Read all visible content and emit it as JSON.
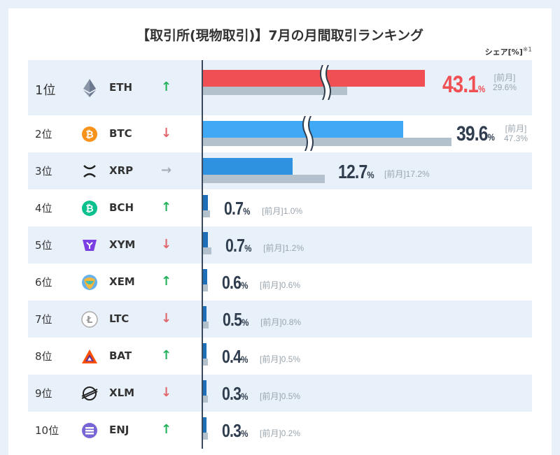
{
  "title": "【取引所(現物取引)】7月の月間取引ランキング",
  "share_unit": "シェア[%]",
  "share_note_mark": "※1",
  "prev_label": "[前月]",
  "colors": {
    "top_bar": "#f04f54",
    "second_bar": "#3fa9f5",
    "other_bar": "#2f92e0",
    "small_bar": "#1f6fb8",
    "prev_bar": "#b3c1cc",
    "up": "#22b15a",
    "down": "#e0666b",
    "flat": "#a5adb4",
    "top_value": "#f04f54"
  },
  "rows": [
    {
      "rank": "1位",
      "symbol": "ETH",
      "icon": "eth-icon",
      "trend": "up",
      "trend_glyph": "↑",
      "value": "43.1",
      "prev": "29.6"
    },
    {
      "rank": "2位",
      "symbol": "BTC",
      "icon": "btc-icon",
      "trend": "down",
      "trend_glyph": "↓",
      "value": "39.6",
      "prev": "47.3"
    },
    {
      "rank": "3位",
      "symbol": "XRP",
      "icon": "xrp-icon",
      "trend": "flat",
      "trend_glyph": "→",
      "value": "12.7",
      "prev": "17.2"
    },
    {
      "rank": "4位",
      "symbol": "BCH",
      "icon": "bch-icon",
      "trend": "up",
      "trend_glyph": "↑",
      "value": "0.7",
      "prev": "1.0"
    },
    {
      "rank": "5位",
      "symbol": "XYM",
      "icon": "xym-icon",
      "trend": "down",
      "trend_glyph": "↓",
      "value": "0.7",
      "prev": "1.2"
    },
    {
      "rank": "6位",
      "symbol": "XEM",
      "icon": "xem-icon",
      "trend": "up",
      "trend_glyph": "↑",
      "value": "0.6",
      "prev": "0.6"
    },
    {
      "rank": "7位",
      "symbol": "LTC",
      "icon": "ltc-icon",
      "trend": "down",
      "trend_glyph": "↓",
      "value": "0.5",
      "prev": "0.8"
    },
    {
      "rank": "8位",
      "symbol": "BAT",
      "icon": "bat-icon",
      "trend": "up",
      "trend_glyph": "↑",
      "value": "0.4",
      "prev": "0.5"
    },
    {
      "rank": "9位",
      "symbol": "XLM",
      "icon": "xlm-icon",
      "trend": "down",
      "trend_glyph": "↓",
      "value": "0.3",
      "prev": "0.5"
    },
    {
      "rank": "10位",
      "symbol": "ENJ",
      "icon": "enj-icon",
      "trend": "up",
      "trend_glyph": "↑",
      "value": "0.3",
      "prev": "0.2"
    }
  ],
  "chart_data": {
    "type": "bar",
    "title": "【取引所(現物取引)】7月の月間取引ランキング",
    "xlabel": "",
    "ylabel": "シェア[%]",
    "categories": [
      "ETH",
      "BTC",
      "XRP",
      "BCH",
      "XYM",
      "XEM",
      "LTC",
      "BAT",
      "XLM",
      "ENJ"
    ],
    "series": [
      {
        "name": "",
        "values": [
          43.1,
          39.6,
          12.7,
          0.7,
          0.7,
          0.6,
          0.5,
          0.4,
          0.3,
          0.3
        ]
      },
      {
        "name": "[前月]",
        "values": [
          29.6,
          47.3,
          17.2,
          1.0,
          1.2,
          0.6,
          0.8,
          0.5,
          0.5,
          0.2
        ]
      }
    ],
    "orientation": "horizontal",
    "axis_break": true
  }
}
